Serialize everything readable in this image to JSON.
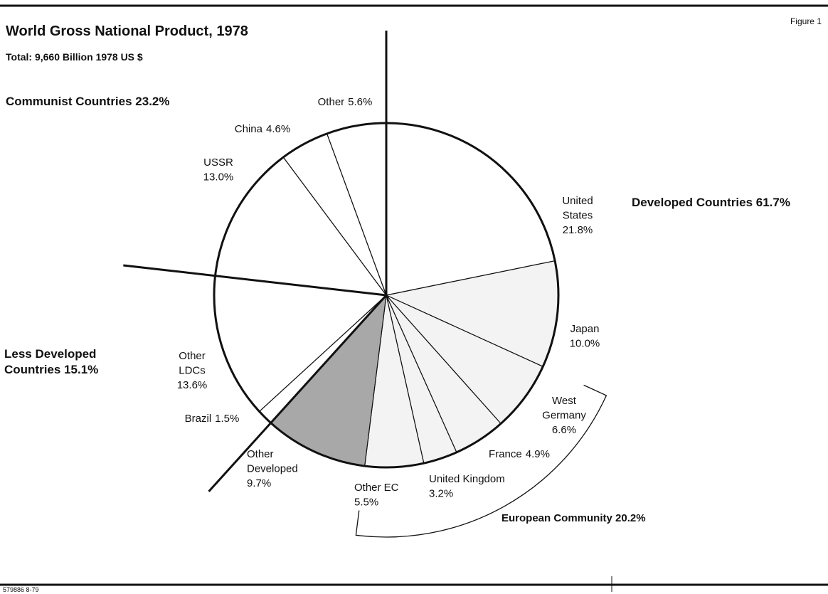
{
  "chart_data": {
    "type": "pie",
    "title": "World Gross National Product, 1978",
    "subtitle": "Total: 9,660 Billion 1978 US $",
    "figure_label": "Figure 1",
    "footer": "579886 8-79",
    "categories": [
      "United States",
      "Japan",
      "West Germany",
      "France",
      "United Kingdom",
      "Other EC",
      "Other Developed",
      "Brazil",
      "Other LDCs",
      "USSR",
      "China",
      "Other"
    ],
    "values": [
      21.8,
      10.0,
      6.6,
      4.9,
      3.2,
      5.5,
      9.7,
      1.5,
      13.6,
      13.0,
      4.6,
      5.6
    ],
    "value_labels": [
      "21.8%",
      "10.0%",
      "6.6%",
      "4.9%",
      "3.2%",
      "5.5%",
      "9.7%",
      "1.5%",
      "13.6%",
      "13.0%",
      "4.6%",
      "5.6%"
    ],
    "colors": [
      "#ffffff",
      "#f3f3f3",
      "#f3f3f3",
      "#f3f3f3",
      "#f3f3f3",
      "#f3f3f3",
      "#a8a8a8",
      "#ffffff",
      "#ffffff",
      "#ffffff",
      "#ffffff",
      "#ffffff"
    ],
    "annotations": [
      "Developed Countries 61.7%",
      "Communist Countries 23.2%",
      "Less Developed Countries 15.1%",
      "European Community 20.2%"
    ]
  }
}
